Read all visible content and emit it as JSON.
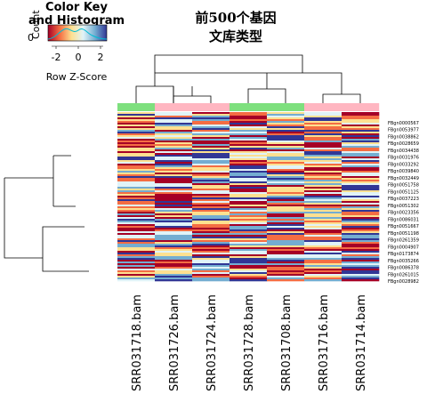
{
  "chart_data": {
    "type": "heatmap",
    "title_lines": [
      "前500个基因",
      "文库类型"
    ],
    "color_key": {
      "title_lines": [
        "Color Key",
        "and Histogram"
      ],
      "count_label": "Count",
      "count_tick": "0",
      "x_label": "Row Z-Score",
      "ticks": [
        "-2",
        "0",
        "2"
      ],
      "colors": [
        "#a50026",
        "#f46d43",
        "#fee090",
        "#e0f3f8",
        "#74add1",
        "#313695"
      ]
    },
    "samples": [
      "SRR031718.bam",
      "SRR031726.bam",
      "SRR031724.bam",
      "SRR031728.bam",
      "SRR031708.bam",
      "SRR031716.bam",
      "SRR031714.bam"
    ],
    "sample_group_colors": [
      "#7ee07e",
      "#ffb6c1",
      "#ffb6c1",
      "#7ee07e",
      "#7ee07e",
      "#ffb6c1",
      "#ffb6c1"
    ],
    "genes": [
      "FBgn0000567",
      "FBgn0053977",
      "FBgn0038862",
      "FBgn0028659",
      "FBgn0034438",
      "FBgn0031976",
      "FBgn0033292",
      "FBgn0039840",
      "FBgn0032449",
      "FBgn0051758",
      "FBgn0051125",
      "FBgn0037223",
      "FBgn0051302",
      "FBgn0023356",
      "FBgn0086031",
      "FBgn0051667",
      "FBgn0051198",
      "FBgn0261359",
      "FBgn0004907",
      "FBgn0173874",
      "FBgn0035266",
      "FBgn0086378",
      "FBgn0261015",
      "FBgn0028982"
    ]
  }
}
